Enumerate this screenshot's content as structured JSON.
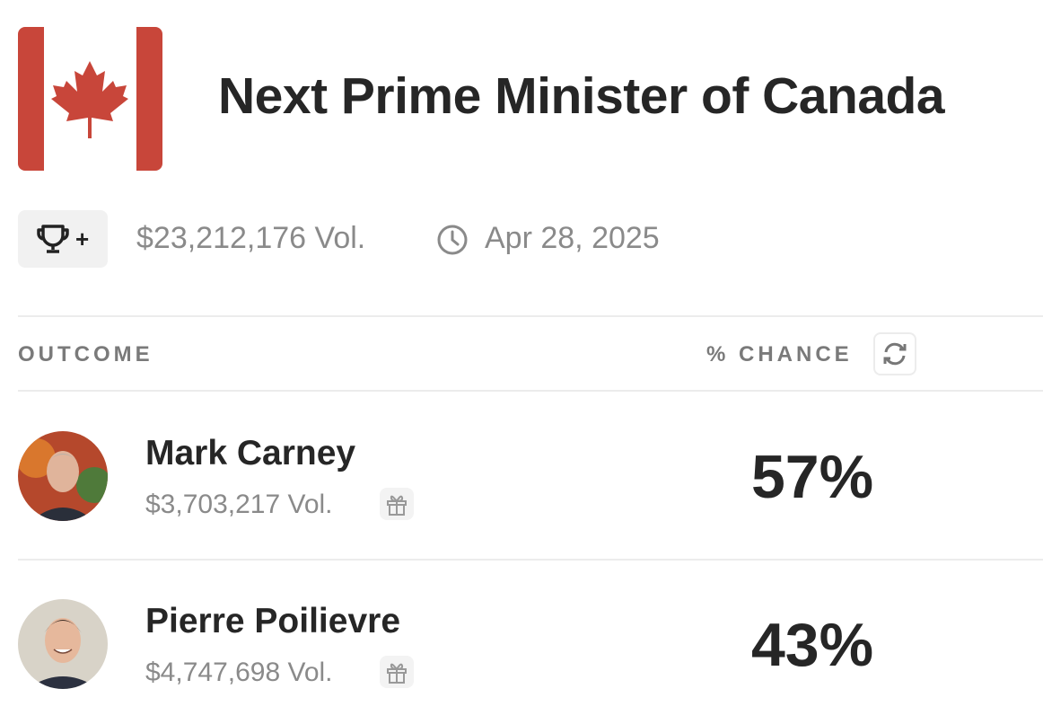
{
  "header": {
    "title": "Next Prime Minister of Canada",
    "badge": "+",
    "volume": "$23,212,176 Vol.",
    "end_date": "Apr 28, 2025"
  },
  "table": {
    "columns": [
      "OUTCOME",
      "% CHANCE"
    ],
    "rows": [
      {
        "name": "Mark Carney",
        "volume": "$3,703,217 Vol.",
        "chance": "57%"
      },
      {
        "name": "Pierre Poilievre",
        "volume": "$4,747,698 Vol.",
        "chance": "43%"
      }
    ]
  }
}
